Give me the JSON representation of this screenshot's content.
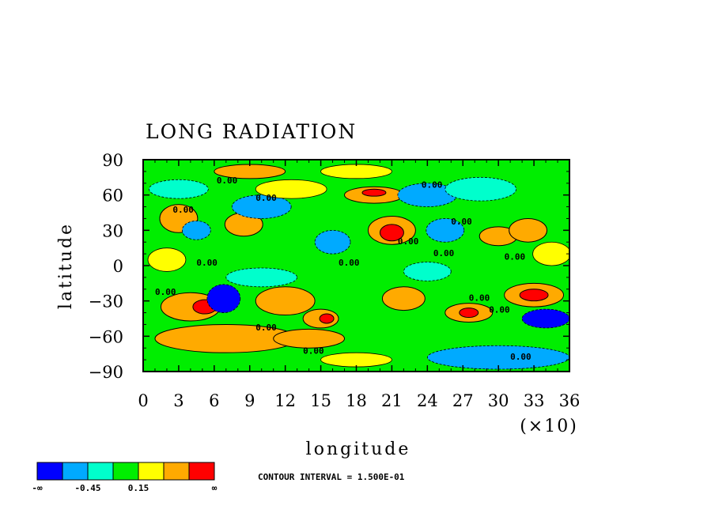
{
  "chart_data": {
    "type": "heatmap",
    "title": "LONG RADIATION",
    "xlabel": "longitude",
    "ylabel": "latitude",
    "x_multiplier": "(×10)",
    "xlim": [
      0,
      36
    ],
    "ylim": [
      -90,
      90
    ],
    "x_ticks": [
      "0",
      "3",
      "6",
      "9",
      "12",
      "15",
      "18",
      "21",
      "24",
      "27",
      "30",
      "33",
      "36"
    ],
    "y_ticks": [
      "90",
      "60",
      "30",
      "0",
      "−30",
      "−60",
      "−90"
    ],
    "contour_interval_text": "CONTOUR INTERVAL = 1.500E-01",
    "contour_labels": [
      "0.00",
      "0.00",
      "0.00",
      "0.00",
      "0.00",
      "0.00",
      "0.00",
      "0.00",
      "0.00",
      "0.00",
      "0.00",
      "0.00",
      "0.00",
      "0.00",
      "0.00",
      "0.00"
    ],
    "colorbar": {
      "colors": [
        "#0000ff",
        "#00aaff",
        "#00ffcc",
        "#00ee00",
        "#ffff00",
        "#ffaa00",
        "#ff0000"
      ],
      "labels": [
        "-∞",
        "-0.45",
        "0.15",
        "∞"
      ]
    },
    "background_level": 3,
    "features": [
      {
        "lon": 3.0,
        "lat": 40,
        "rx": 1.6,
        "ry": 12,
        "level": 5
      },
      {
        "lon": 4.5,
        "lat": 30,
        "rx": 1.2,
        "ry": 8,
        "level": 1
      },
      {
        "lon": 4.0,
        "lat": -35,
        "rx": 2.5,
        "ry": 12,
        "level": 5
      },
      {
        "lon": 5.2,
        "lat": -35,
        "rx": 1.0,
        "ry": 6,
        "level": 6
      },
      {
        "lon": 6.8,
        "lat": -28,
        "rx": 1.4,
        "ry": 12,
        "level": 0
      },
      {
        "lon": 8.5,
        "lat": 35,
        "rx": 1.6,
        "ry": 10,
        "level": 5
      },
      {
        "lon": 7.0,
        "lat": -62,
        "rx": 6.0,
        "ry": 12,
        "level": 5
      },
      {
        "lon": 12.0,
        "lat": -30,
        "rx": 2.5,
        "ry": 12,
        "level": 5
      },
      {
        "lon": 10.0,
        "lat": 50,
        "rx": 2.5,
        "ry": 10,
        "level": 1
      },
      {
        "lon": 15.0,
        "lat": -45,
        "rx": 1.5,
        "ry": 8,
        "level": 5
      },
      {
        "lon": 15.5,
        "lat": -45,
        "rx": 0.6,
        "ry": 4,
        "level": 6
      },
      {
        "lon": 16.0,
        "lat": 20,
        "rx": 1.5,
        "ry": 10,
        "level": 1
      },
      {
        "lon": 14.0,
        "lat": -62,
        "rx": 3.0,
        "ry": 8,
        "level": 5
      },
      {
        "lon": 19.5,
        "lat": 60,
        "rx": 2.5,
        "ry": 7,
        "level": 5
      },
      {
        "lon": 19.5,
        "lat": 62,
        "rx": 1.0,
        "ry": 3,
        "level": 6
      },
      {
        "lon": 21.0,
        "lat": 30,
        "rx": 2.0,
        "ry": 12,
        "level": 5
      },
      {
        "lon": 21.0,
        "lat": 28,
        "rx": 1.0,
        "ry": 7,
        "level": 6
      },
      {
        "lon": 22.0,
        "lat": -28,
        "rx": 1.8,
        "ry": 10,
        "level": 5
      },
      {
        "lon": 24.0,
        "lat": 60,
        "rx": 2.5,
        "ry": 10,
        "level": 1
      },
      {
        "lon": 25.5,
        "lat": 30,
        "rx": 1.6,
        "ry": 10,
        "level": 1
      },
      {
        "lon": 27.5,
        "lat": -40,
        "rx": 2.0,
        "ry": 8,
        "level": 5
      },
      {
        "lon": 27.5,
        "lat": -40,
        "rx": 0.8,
        "ry": 4,
        "level": 6
      },
      {
        "lon": 28.5,
        "lat": 65,
        "rx": 3.0,
        "ry": 10,
        "level": 2
      },
      {
        "lon": 30.0,
        "lat": 25,
        "rx": 1.6,
        "ry": 8,
        "level": 5
      },
      {
        "lon": 32.5,
        "lat": 30,
        "rx": 1.6,
        "ry": 10,
        "level": 5
      },
      {
        "lon": 33.0,
        "lat": -25,
        "rx": 2.5,
        "ry": 10,
        "level": 5
      },
      {
        "lon": 33.0,
        "lat": -25,
        "rx": 1.2,
        "ry": 5,
        "level": 6
      },
      {
        "lon": 34.0,
        "lat": -45,
        "rx": 2.0,
        "ry": 8,
        "level": 0
      },
      {
        "lon": 30.0,
        "lat": -78,
        "rx": 6.0,
        "ry": 10,
        "level": 1
      },
      {
        "lon": 9.0,
        "lat": 80,
        "rx": 3.0,
        "ry": 6,
        "level": 5
      },
      {
        "lon": 3.0,
        "lat": 65,
        "rx": 2.5,
        "ry": 8,
        "level": 2
      },
      {
        "lon": 12.5,
        "lat": 65,
        "rx": 3.0,
        "ry": 8,
        "level": 4
      },
      {
        "lon": 18.0,
        "lat": 80,
        "rx": 3.0,
        "ry": 6,
        "level": 4
      },
      {
        "lon": 18.0,
        "lat": -80,
        "rx": 3.0,
        "ry": 6,
        "level": 4
      },
      {
        "lon": 24.0,
        "lat": -5,
        "rx": 2.0,
        "ry": 8,
        "level": 2
      },
      {
        "lon": 10.0,
        "lat": -10,
        "rx": 3.0,
        "ry": 8,
        "level": 2
      },
      {
        "lon": 2.0,
        "lat": 5,
        "rx": 1.6,
        "ry": 10,
        "level": 4
      },
      {
        "lon": 34.5,
        "lat": 10,
        "rx": 1.6,
        "ry": 10,
        "level": 4
      }
    ]
  }
}
